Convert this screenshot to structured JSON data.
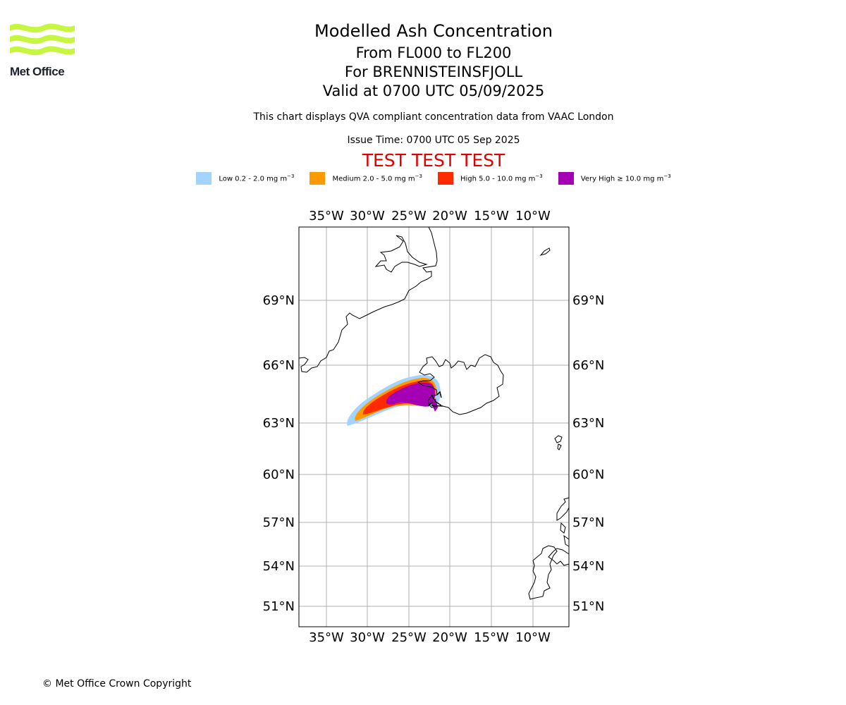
{
  "logo": {
    "text": "Met Office",
    "brand_color": "#c8f542",
    "text_color": "#1d2129"
  },
  "header": {
    "title": "Modelled Ash Concentration",
    "levels": "From FL000 to FL200",
    "volcano": "For BRENNISTEINSFJOLL",
    "valid": "Valid at 0700 UTC 05/09/2025",
    "subtitle": "This chart displays QVA compliant concentration data from VAAC London",
    "issue_time": "Issue Time: 0700 UTC 05 Sep 2025",
    "test_banner": "TEST TEST TEST",
    "test_color": "#e00000"
  },
  "legend": [
    {
      "label": "Low 0.2 - 2.0 mg m",
      "exp": "−3",
      "color": "#a3d3ff"
    },
    {
      "label": "Medium 2.0 - 5.0 mg m",
      "exp": "−3",
      "color": "#ff9900"
    },
    {
      "label": "High 5.0 - 10.0 mg m",
      "exp": "−3",
      "color": "#ff2a00"
    },
    {
      "label": "Very High  ≥  10.0 mg m",
      "exp": "−3",
      "color": "#a600b4"
    }
  ],
  "map": {
    "lon_labels": [
      "35°W",
      "30°W",
      "25°W",
      "20°W",
      "15°W",
      "10°W"
    ],
    "lat_labels": [
      "69°N",
      "66°N",
      "63°N",
      "60°N",
      "57°N",
      "54°N",
      "51°N"
    ],
    "grid": true,
    "coastline_color": "#000000",
    "grid_color": "#b0b0b0"
  },
  "footer": {
    "copyright": "© Met Office Crown Copyright"
  }
}
